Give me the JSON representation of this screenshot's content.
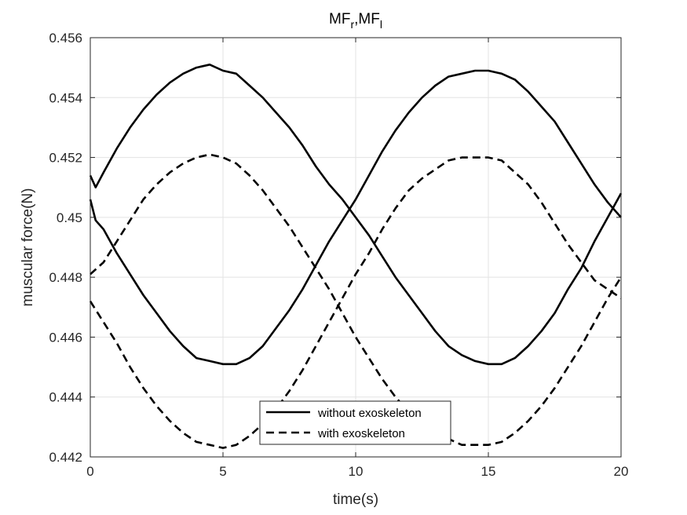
{
  "chart_data": {
    "type": "line",
    "title": {
      "base1": "MF",
      "sub1": "r",
      "sep": ",",
      "base2": "MF",
      "sub2": "l"
    },
    "xlabel": "time(s)",
    "ylabel": "muscular force(N)",
    "xlim": [
      0,
      20
    ],
    "ylim": [
      0.442,
      0.456
    ],
    "xticks": [
      0,
      5,
      10,
      15,
      20
    ],
    "xtick_labels": [
      "0",
      "5",
      "10",
      "15",
      "20"
    ],
    "yticks": [
      0.442,
      0.444,
      0.446,
      0.448,
      0.45,
      0.452,
      0.454,
      0.456
    ],
    "ytick_labels": [
      "0.442",
      "0.444",
      "0.446",
      "0.448",
      "0.45",
      "0.452",
      "0.454",
      "0.456"
    ],
    "grid": true,
    "legend_position": "bottom-center",
    "series": [
      {
        "name": "without exoskeleton",
        "style": "solid",
        "color": "#000000",
        "x": [
          0,
          0.2,
          0.5,
          1,
          1.5,
          2,
          2.5,
          3,
          3.5,
          4,
          4.5,
          5,
          5.5,
          6,
          6.5,
          7,
          7.5,
          8,
          8.5,
          9,
          9.5,
          10,
          10.5,
          11,
          11.5,
          12,
          12.5,
          13,
          13.5,
          14,
          14.5,
          15,
          15.5,
          16,
          16.5,
          17,
          17.5,
          18,
          18.5,
          19,
          19.5,
          20
        ],
        "y": [
          0.4514,
          0.451,
          0.4515,
          0.4523,
          0.453,
          0.4536,
          0.4541,
          0.4545,
          0.4548,
          0.455,
          0.4551,
          0.4549,
          0.4548,
          0.4544,
          0.454,
          0.4535,
          0.453,
          0.4524,
          0.4517,
          0.4511,
          0.4506,
          0.45,
          0.4494,
          0.4487,
          0.448,
          0.4474,
          0.4468,
          0.4462,
          0.4457,
          0.4454,
          0.4452,
          0.4451,
          0.4451,
          0.4453,
          0.4457,
          0.4462,
          0.4468,
          0.4476,
          0.4483,
          0.4492,
          0.45,
          0.4508
        ]
      },
      {
        "name": "",
        "style": "solid",
        "color": "#000000",
        "x": [
          0,
          0.2,
          0.5,
          1,
          1.5,
          2,
          2.5,
          3,
          3.5,
          4,
          4.5,
          5,
          5.5,
          6,
          6.5,
          7,
          7.5,
          8,
          8.5,
          9,
          9.5,
          10,
          10.5,
          11,
          11.5,
          12,
          12.5,
          13,
          13.5,
          14,
          14.5,
          15,
          15.5,
          16,
          16.5,
          17,
          17.5,
          18,
          18.5,
          19,
          19.5,
          20
        ],
        "y": [
          0.4506,
          0.4499,
          0.4496,
          0.4488,
          0.4481,
          0.4474,
          0.4468,
          0.4462,
          0.4457,
          0.4453,
          0.4452,
          0.4451,
          0.4451,
          0.4453,
          0.4457,
          0.4463,
          0.4469,
          0.4476,
          0.4484,
          0.4492,
          0.4499,
          0.4506,
          0.4514,
          0.4522,
          0.4529,
          0.4535,
          0.454,
          0.4544,
          0.4547,
          0.4548,
          0.4549,
          0.4549,
          0.4548,
          0.4546,
          0.4542,
          0.4537,
          0.4532,
          0.4525,
          0.4518,
          0.4511,
          0.4505,
          0.45
        ]
      },
      {
        "name": "with exoskeleton",
        "style": "dashed",
        "color": "#000000",
        "x": [
          0,
          0.5,
          1,
          1.5,
          2,
          2.5,
          3,
          3.5,
          4,
          4.5,
          5,
          5.5,
          6,
          6.5,
          7,
          7.5,
          8,
          8.5,
          9,
          9.5,
          10,
          10.5,
          11,
          11.5,
          12,
          12.5,
          13,
          13.5,
          14,
          14.5,
          15,
          15.5,
          16,
          16.5,
          17,
          17.5,
          18,
          18.5,
          19,
          19.5,
          20
        ],
        "y": [
          0.4481,
          0.4485,
          0.4492,
          0.4499,
          0.4506,
          0.4511,
          0.4515,
          0.4518,
          0.452,
          0.4521,
          0.452,
          0.4518,
          0.4514,
          0.4509,
          0.4503,
          0.4497,
          0.449,
          0.4483,
          0.4476,
          0.4468,
          0.446,
          0.4453,
          0.4446,
          0.444,
          0.4435,
          0.4431,
          0.4428,
          0.4426,
          0.4424,
          0.4424,
          0.4424,
          0.4425,
          0.4428,
          0.4432,
          0.4437,
          0.4443,
          0.445,
          0.4457,
          0.4465,
          0.4473,
          0.448
        ]
      },
      {
        "name": "",
        "style": "dashed",
        "color": "#000000",
        "x": [
          0,
          0.5,
          1,
          1.5,
          2,
          2.5,
          3,
          3.5,
          4,
          4.5,
          5,
          5.5,
          6,
          6.5,
          7,
          7.5,
          8,
          8.5,
          9,
          9.5,
          10,
          10.5,
          11,
          11.5,
          12,
          12.5,
          13,
          13.5,
          14,
          14.5,
          15,
          15.5,
          16,
          16.5,
          17,
          17.5,
          18,
          18.5,
          19,
          19.5,
          20
        ],
        "y": [
          0.4472,
          0.4465,
          0.4458,
          0.445,
          0.4443,
          0.4437,
          0.4432,
          0.4428,
          0.4425,
          0.4424,
          0.4423,
          0.4424,
          0.4427,
          0.4431,
          0.4436,
          0.4442,
          0.4449,
          0.4457,
          0.4465,
          0.4473,
          0.4481,
          0.4488,
          0.4496,
          0.4503,
          0.4509,
          0.4513,
          0.4516,
          0.4519,
          0.452,
          0.452,
          0.452,
          0.4519,
          0.4515,
          0.4511,
          0.4505,
          0.4498,
          0.4491,
          0.4485,
          0.4479,
          0.4476,
          0.4473
        ]
      }
    ]
  }
}
